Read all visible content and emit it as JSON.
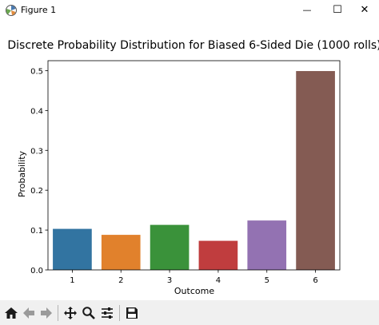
{
  "window": {
    "title": "Figure 1",
    "minimize_symbol": "—",
    "maximize_symbol": "☐",
    "close_symbol": "✕"
  },
  "toolbar": {
    "buttons": [
      {
        "name": "home-button",
        "icon": "home-icon"
      },
      {
        "name": "back-button",
        "icon": "arrow-left-icon"
      },
      {
        "name": "forward-button",
        "icon": "arrow-right-icon"
      },
      {
        "name": "pan-button",
        "icon": "move-icon"
      },
      {
        "name": "zoom-button",
        "icon": "magnifier-icon"
      },
      {
        "name": "configure-subplots-button",
        "icon": "sliders-icon"
      },
      {
        "name": "save-button",
        "icon": "floppy-disk-icon"
      }
    ]
  },
  "chart_data": {
    "type": "bar",
    "title": "Discrete Probability Distribution for Biased 6-Sided Die (1000 rolls)",
    "xlabel": "Outcome",
    "ylabel": "Probability",
    "categories": [
      "1",
      "2",
      "3",
      "4",
      "5",
      "6"
    ],
    "values": [
      0.103,
      0.088,
      0.113,
      0.073,
      0.124,
      0.499
    ],
    "colors": [
      "#3274a1",
      "#e1812c",
      "#3a923a",
      "#c03d3e",
      "#9372b2",
      "#845b53"
    ],
    "ylim": [
      0,
      0.525
    ],
    "yticks": [
      0.0,
      0.1,
      0.2,
      0.3,
      0.4,
      0.5
    ],
    "ytick_labels": [
      "0.0",
      "0.1",
      "0.2",
      "0.3",
      "0.4",
      "0.5"
    ],
    "grid": false,
    "legend": "none"
  }
}
